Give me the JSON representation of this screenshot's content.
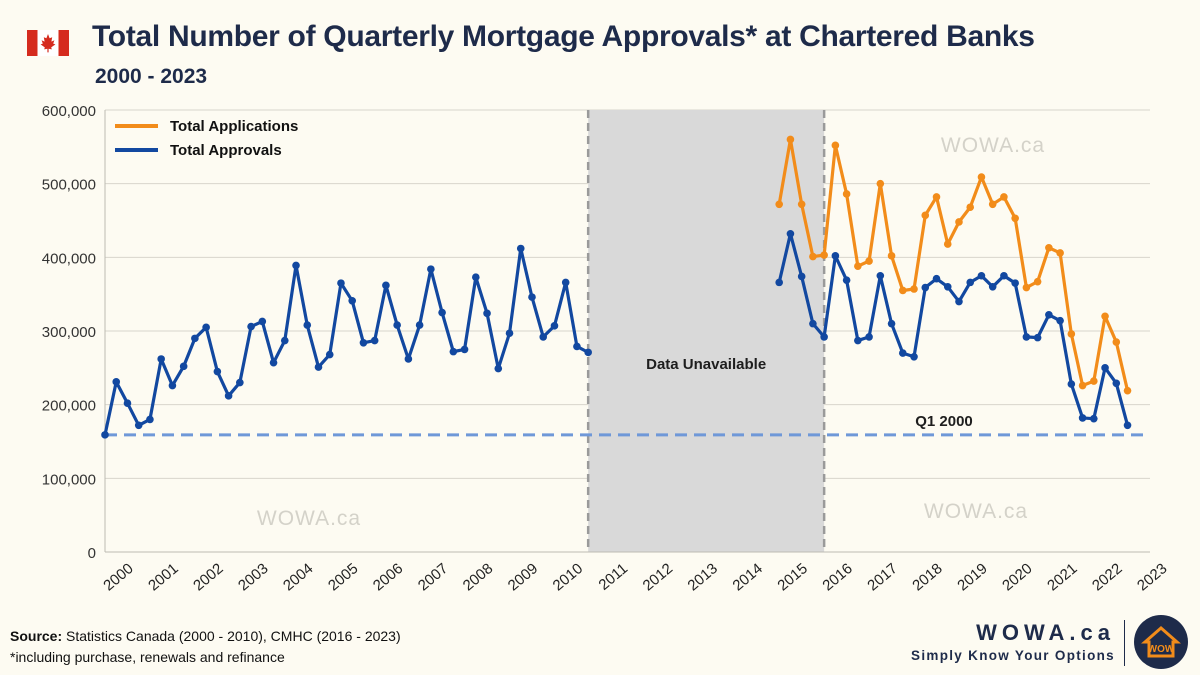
{
  "header": {
    "title": "Total Number of Quarterly Mortgage Approvals* at Chartered Banks",
    "subtitle": "2000 - 2023"
  },
  "footer": {
    "source_label": "Source:",
    "source_text": "Statistics Canada (2000 - 2010), CMHC (2016 - 2023)",
    "note": "*including purchase, renewals and refinance"
  },
  "brand": {
    "name": "WOWA.ca",
    "tagline": "Simply Know Your Options",
    "logo_text": "WOW"
  },
  "colors": {
    "applications": "#f28c1a",
    "approvals": "#1248a0",
    "reference": "#6f98d8",
    "gap_fill": "#d9d9d9",
    "gap_border": "#9a9a9a",
    "flag_red": "#d52b1e",
    "logo_bg": "#1e2b4a",
    "logo_accent": "#f28c1a"
  },
  "chart_data": {
    "type": "line",
    "title": "Total Number of Quarterly Mortgage Approvals* at Chartered Banks",
    "subtitle": "2000 - 2023",
    "xlabel": "",
    "ylabel": "",
    "ylim": [
      0,
      600000
    ],
    "yticks": [
      0,
      100000,
      200000,
      300000,
      400000,
      500000,
      600000
    ],
    "ytick_labels": [
      "0",
      "100,000",
      "200,000",
      "300,000",
      "400,000",
      "500,000",
      "600,000"
    ],
    "x_categories": [
      "2000",
      "2001",
      "2002",
      "2003",
      "2004",
      "2005",
      "2006",
      "2007",
      "2008",
      "2009",
      "2010",
      "2011",
      "2012",
      "2013",
      "2014",
      "2015",
      "2016",
      "2017",
      "2018",
      "2019",
      "2020",
      "2021",
      "2022",
      "2023"
    ],
    "grid": true,
    "legend_position": "top-left",
    "series": [
      {
        "name": "Total Applications",
        "color": "#f28c1a",
        "segments": [
          {
            "start_year": 2015,
            "values": [
              472000,
              560000,
              472000,
              401000,
              403000,
              552000,
              486000,
              388000,
              395000,
              500000,
              402000,
              355000,
              357000,
              457000,
              482000,
              418000,
              448000,
              468000,
              509000,
              472000,
              482000,
              453000,
              359000,
              367000,
              413000,
              406000,
              296000,
              226000,
              232000,
              320000,
              285000,
              219000
            ]
          }
        ]
      },
      {
        "name": "Total Approvals",
        "color": "#1248a0",
        "segments": [
          {
            "start_year": 2000,
            "values": [
              159000,
              231000,
              202000,
              172000,
              180000,
              262000,
              226000,
              252000,
              290000,
              305000,
              245000,
              212000,
              230000,
              306000,
              313000,
              257000,
              287000,
              389000,
              308000,
              251000,
              268000,
              365000,
              341000,
              284000,
              287000,
              362000,
              308000,
              262000,
              308000,
              384000,
              325000,
              272000,
              275000,
              373000,
              324000,
              249000,
              297000,
              412000,
              346000,
              292000,
              307000,
              366000,
              279000,
              271000
            ]
          },
          {
            "start_year": 2015,
            "values": [
              366000,
              432000,
              374000,
              310000,
              292000,
              402000,
              369000,
              287000,
              292000,
              375000,
              310000,
              270000,
              265000,
              359000,
              371000,
              360000,
              340000,
              366000,
              375000,
              360000,
              375000,
              365000,
              292000,
              291000,
              322000,
              314000,
              228000,
              182000,
              181000,
              250000,
              229000,
              172000
            ]
          }
        ]
      }
    ],
    "shaded_region": {
      "from_year": 2010.75,
      "to_year": 2016,
      "label": "Data Unavailable"
    },
    "reference_line": {
      "value": 159000,
      "label": "Q1 2000"
    },
    "watermark": "WOWA.ca"
  }
}
